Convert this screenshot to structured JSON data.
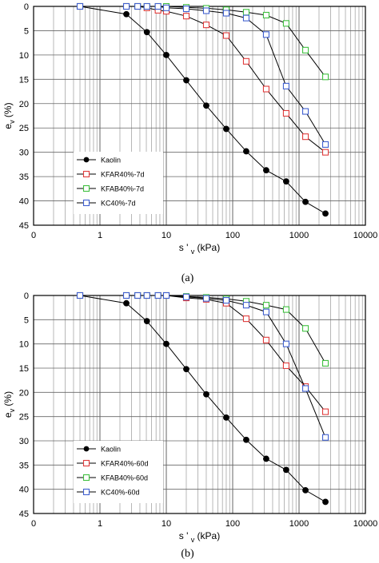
{
  "chart_data": [
    {
      "type": "scatter",
      "caption": "(a)",
      "xlabel_main": "s ' ",
      "xlabel_sub": "v",
      "xlabel_tail": " (kPa)",
      "ylabel_main": "e",
      "ylabel_sub": "v",
      "ylabel_tail": " (%)",
      "xscale": "log",
      "xlim": [
        0.1,
        10000
      ],
      "ylim": [
        0,
        45
      ],
      "y_inverted": true,
      "x_ticks": [
        "0",
        "1",
        "10",
        "100",
        "1000",
        "10000"
      ],
      "y_ticks": [
        "0",
        "5",
        "10",
        "15",
        "20",
        "25",
        "30",
        "35",
        "40",
        "45"
      ],
      "grid": true,
      "legend_position": "bottom-left",
      "series": [
        {
          "name": "Kaolin",
          "color": "#000000",
          "marker": "filled-circle",
          "x": [
            0.5,
            2.5,
            5.1,
            10,
            20,
            40,
            80,
            160,
            320,
            640,
            1250,
            2500
          ],
          "y": [
            0,
            1.6,
            5.3,
            10,
            15.2,
            20.4,
            25.2,
            29.8,
            33.7,
            36,
            40.2,
            42.6
          ]
        },
        {
          "name": "KFAR40%-7d",
          "color": "#e03c3c",
          "marker": "open-square",
          "x": [
            0.5,
            2.5,
            3.7,
            5.1,
            7.5,
            10,
            20,
            40,
            80,
            160,
            320,
            640,
            1250,
            2500
          ],
          "y": [
            0,
            0,
            0,
            0.3,
            0.8,
            1,
            2,
            3.8,
            6,
            11.3,
            17,
            22,
            26.8,
            30
          ]
        },
        {
          "name": "KFAB40%-7d",
          "color": "#40c040",
          "marker": "open-square",
          "x": [
            0.5,
            2.5,
            3.7,
            5.1,
            7.5,
            10,
            20,
            40,
            80,
            160,
            320,
            640,
            1250,
            2500
          ],
          "y": [
            0,
            0,
            0,
            0,
            0,
            0,
            0.2,
            0.4,
            0.7,
            1.2,
            1.8,
            3.5,
            9,
            14.5
          ]
        },
        {
          "name": "KC40%-7d",
          "color": "#4060d0",
          "marker": "open-square",
          "x": [
            0.5,
            2.5,
            3.7,
            5.1,
            7.5,
            10,
            20,
            40,
            80,
            160,
            320,
            640,
            1250,
            2500
          ],
          "y": [
            0,
            0,
            0,
            0,
            0,
            0.3,
            0.5,
            0.9,
            1.4,
            2.4,
            5.8,
            16.4,
            21.6,
            28.4
          ]
        }
      ]
    },
    {
      "type": "scatter",
      "caption": "(b)",
      "xlabel_main": "s ' ",
      "xlabel_sub": "v",
      "xlabel_tail": " (kPa)",
      "ylabel_main": "e",
      "ylabel_sub": "v",
      "ylabel_tail": " (%)",
      "xscale": "log",
      "xlim": [
        0.1,
        10000
      ],
      "ylim": [
        0,
        45
      ],
      "y_inverted": true,
      "x_ticks": [
        "0",
        "1",
        "10",
        "100",
        "1000",
        "10000"
      ],
      "y_ticks": [
        "0",
        "5",
        "10",
        "15",
        "20",
        "25",
        "30",
        "35",
        "40",
        "45"
      ],
      "grid": true,
      "legend_position": "bottom-left",
      "series": [
        {
          "name": "Kaolin",
          "color": "#000000",
          "marker": "filled-circle",
          "x": [
            0.5,
            2.5,
            5.1,
            10,
            20,
            40,
            80,
            160,
            320,
            640,
            1250,
            2500
          ],
          "y": [
            0,
            1.6,
            5.3,
            10,
            15.2,
            20.4,
            25.2,
            29.8,
            33.7,
            36,
            40.2,
            42.6
          ]
        },
        {
          "name": "KFAR40%-60d",
          "color": "#e03c3c",
          "marker": "open-square",
          "x": [
            0.5,
            2.5,
            3.7,
            5.1,
            7.5,
            10,
            20,
            40,
            80,
            160,
            320,
            640,
            1250,
            2500
          ],
          "y": [
            0,
            0,
            0,
            0,
            0,
            0,
            0.5,
            0.8,
            1.6,
            4.8,
            9.2,
            14.5,
            18.8,
            24
          ]
        },
        {
          "name": "KFAB40%-60d",
          "color": "#40c040",
          "marker": "open-square",
          "x": [
            0.5,
            2.5,
            3.7,
            5.1,
            7.5,
            10,
            20,
            40,
            80,
            160,
            320,
            640,
            1250,
            2500
          ],
          "y": [
            0,
            0,
            0,
            0,
            0,
            0,
            0.2,
            0.4,
            0.7,
            1.2,
            2.0,
            2.9,
            6.8,
            14
          ]
        },
        {
          "name": "KC40%-60d",
          "color": "#4060d0",
          "marker": "open-square",
          "x": [
            0.5,
            2.5,
            3.7,
            5.1,
            7.5,
            10,
            20,
            40,
            80,
            160,
            320,
            640,
            1250,
            2500
          ],
          "y": [
            0,
            0,
            0,
            0,
            0,
            0,
            0.3,
            0.6,
            1.0,
            2.0,
            3.4,
            10,
            19.2,
            29.3
          ]
        }
      ]
    }
  ]
}
